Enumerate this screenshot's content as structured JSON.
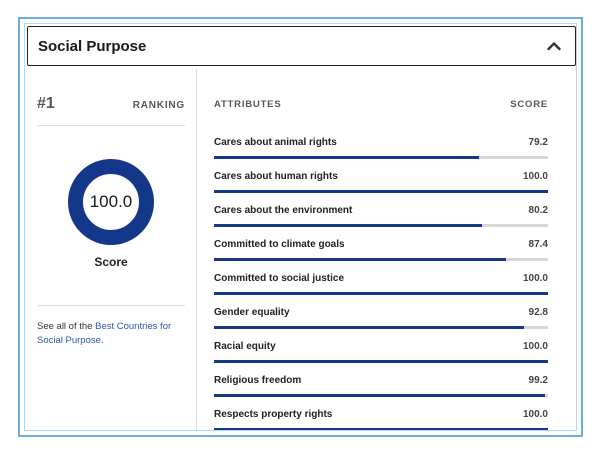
{
  "panel": {
    "title": "Social Purpose",
    "collapse_icon": "chevron-up-icon"
  },
  "ranking": {
    "rank": "#1",
    "label": "RANKING"
  },
  "overall": {
    "score_text": "100.0",
    "score_fraction": 1.0,
    "label": "Score",
    "ring_color": "#13388a"
  },
  "see_all": {
    "prefix": "See all of the ",
    "link_text": "Best Countries for Social Purpose",
    "suffix": "."
  },
  "attributes_table": {
    "header_attributes": "ATTRIBUTES",
    "header_score": "SCORE",
    "bar_color": "#13388a",
    "track_color": "#d6d6d6",
    "max_score": 100,
    "rows": [
      {
        "name": "Cares about animal rights",
        "score": "79.2",
        "value": 79.2
      },
      {
        "name": "Cares about human rights",
        "score": "100.0",
        "value": 100.0
      },
      {
        "name": "Cares about the environment",
        "score": "80.2",
        "value": 80.2
      },
      {
        "name": "Committed to climate goals",
        "score": "87.4",
        "value": 87.4
      },
      {
        "name": "Committed to social justice",
        "score": "100.0",
        "value": 100.0
      },
      {
        "name": "Gender equality",
        "score": "92.8",
        "value": 92.8
      },
      {
        "name": "Racial equity",
        "score": "100.0",
        "value": 100.0
      },
      {
        "name": "Religious freedom",
        "score": "99.2",
        "value": 99.2
      },
      {
        "name": "Respects property rights",
        "score": "100.0",
        "value": 100.0
      }
    ]
  }
}
